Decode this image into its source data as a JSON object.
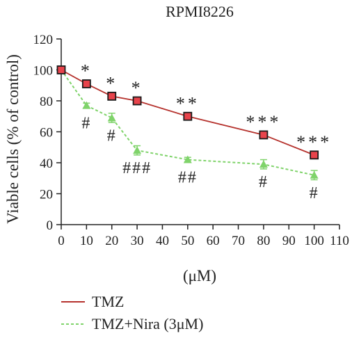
{
  "chart_data": {
    "type": "line",
    "title": "RPMI8226",
    "xlabel": "(μM)",
    "ylabel": "Viable cells (% of control)",
    "xlim": [
      0,
      110
    ],
    "ylim": [
      0,
      120
    ],
    "xticks": [
      "0",
      "10",
      "20",
      "30",
      "40",
      "50",
      "60",
      "70",
      "80",
      "90",
      "100",
      "110"
    ],
    "yticks": [
      "0",
      "20",
      "40",
      "60",
      "80",
      "100",
      "120"
    ],
    "grid": false,
    "legend_position": "bottom-left",
    "series": [
      {
        "name": "TMZ",
        "color": "#b5312c",
        "marker_color": "#e8434b",
        "line_style": "solid",
        "marker": "square",
        "x": [
          0,
          10,
          20,
          30,
          50,
          80,
          100
        ],
        "y": [
          100,
          91,
          83,
          80,
          70,
          58,
          45
        ],
        "annotations": [
          "",
          "*",
          "*",
          "*",
          "**",
          "***",
          "***"
        ]
      },
      {
        "name": "TMZ+Nira (3μM)",
        "color": "#7fd36a",
        "marker_color": "#7fd36a",
        "line_style": "dashed",
        "marker": "triangle",
        "x": [
          0,
          10,
          20,
          30,
          50,
          80,
          100
        ],
        "y": [
          100,
          77,
          69,
          48,
          42,
          39,
          32
        ],
        "error": [
          0,
          1.5,
          3,
          3,
          1.5,
          3,
          3
        ],
        "annotations": [
          "",
          "#",
          "#",
          "###",
          "##",
          "#",
          "#"
        ]
      }
    ]
  }
}
